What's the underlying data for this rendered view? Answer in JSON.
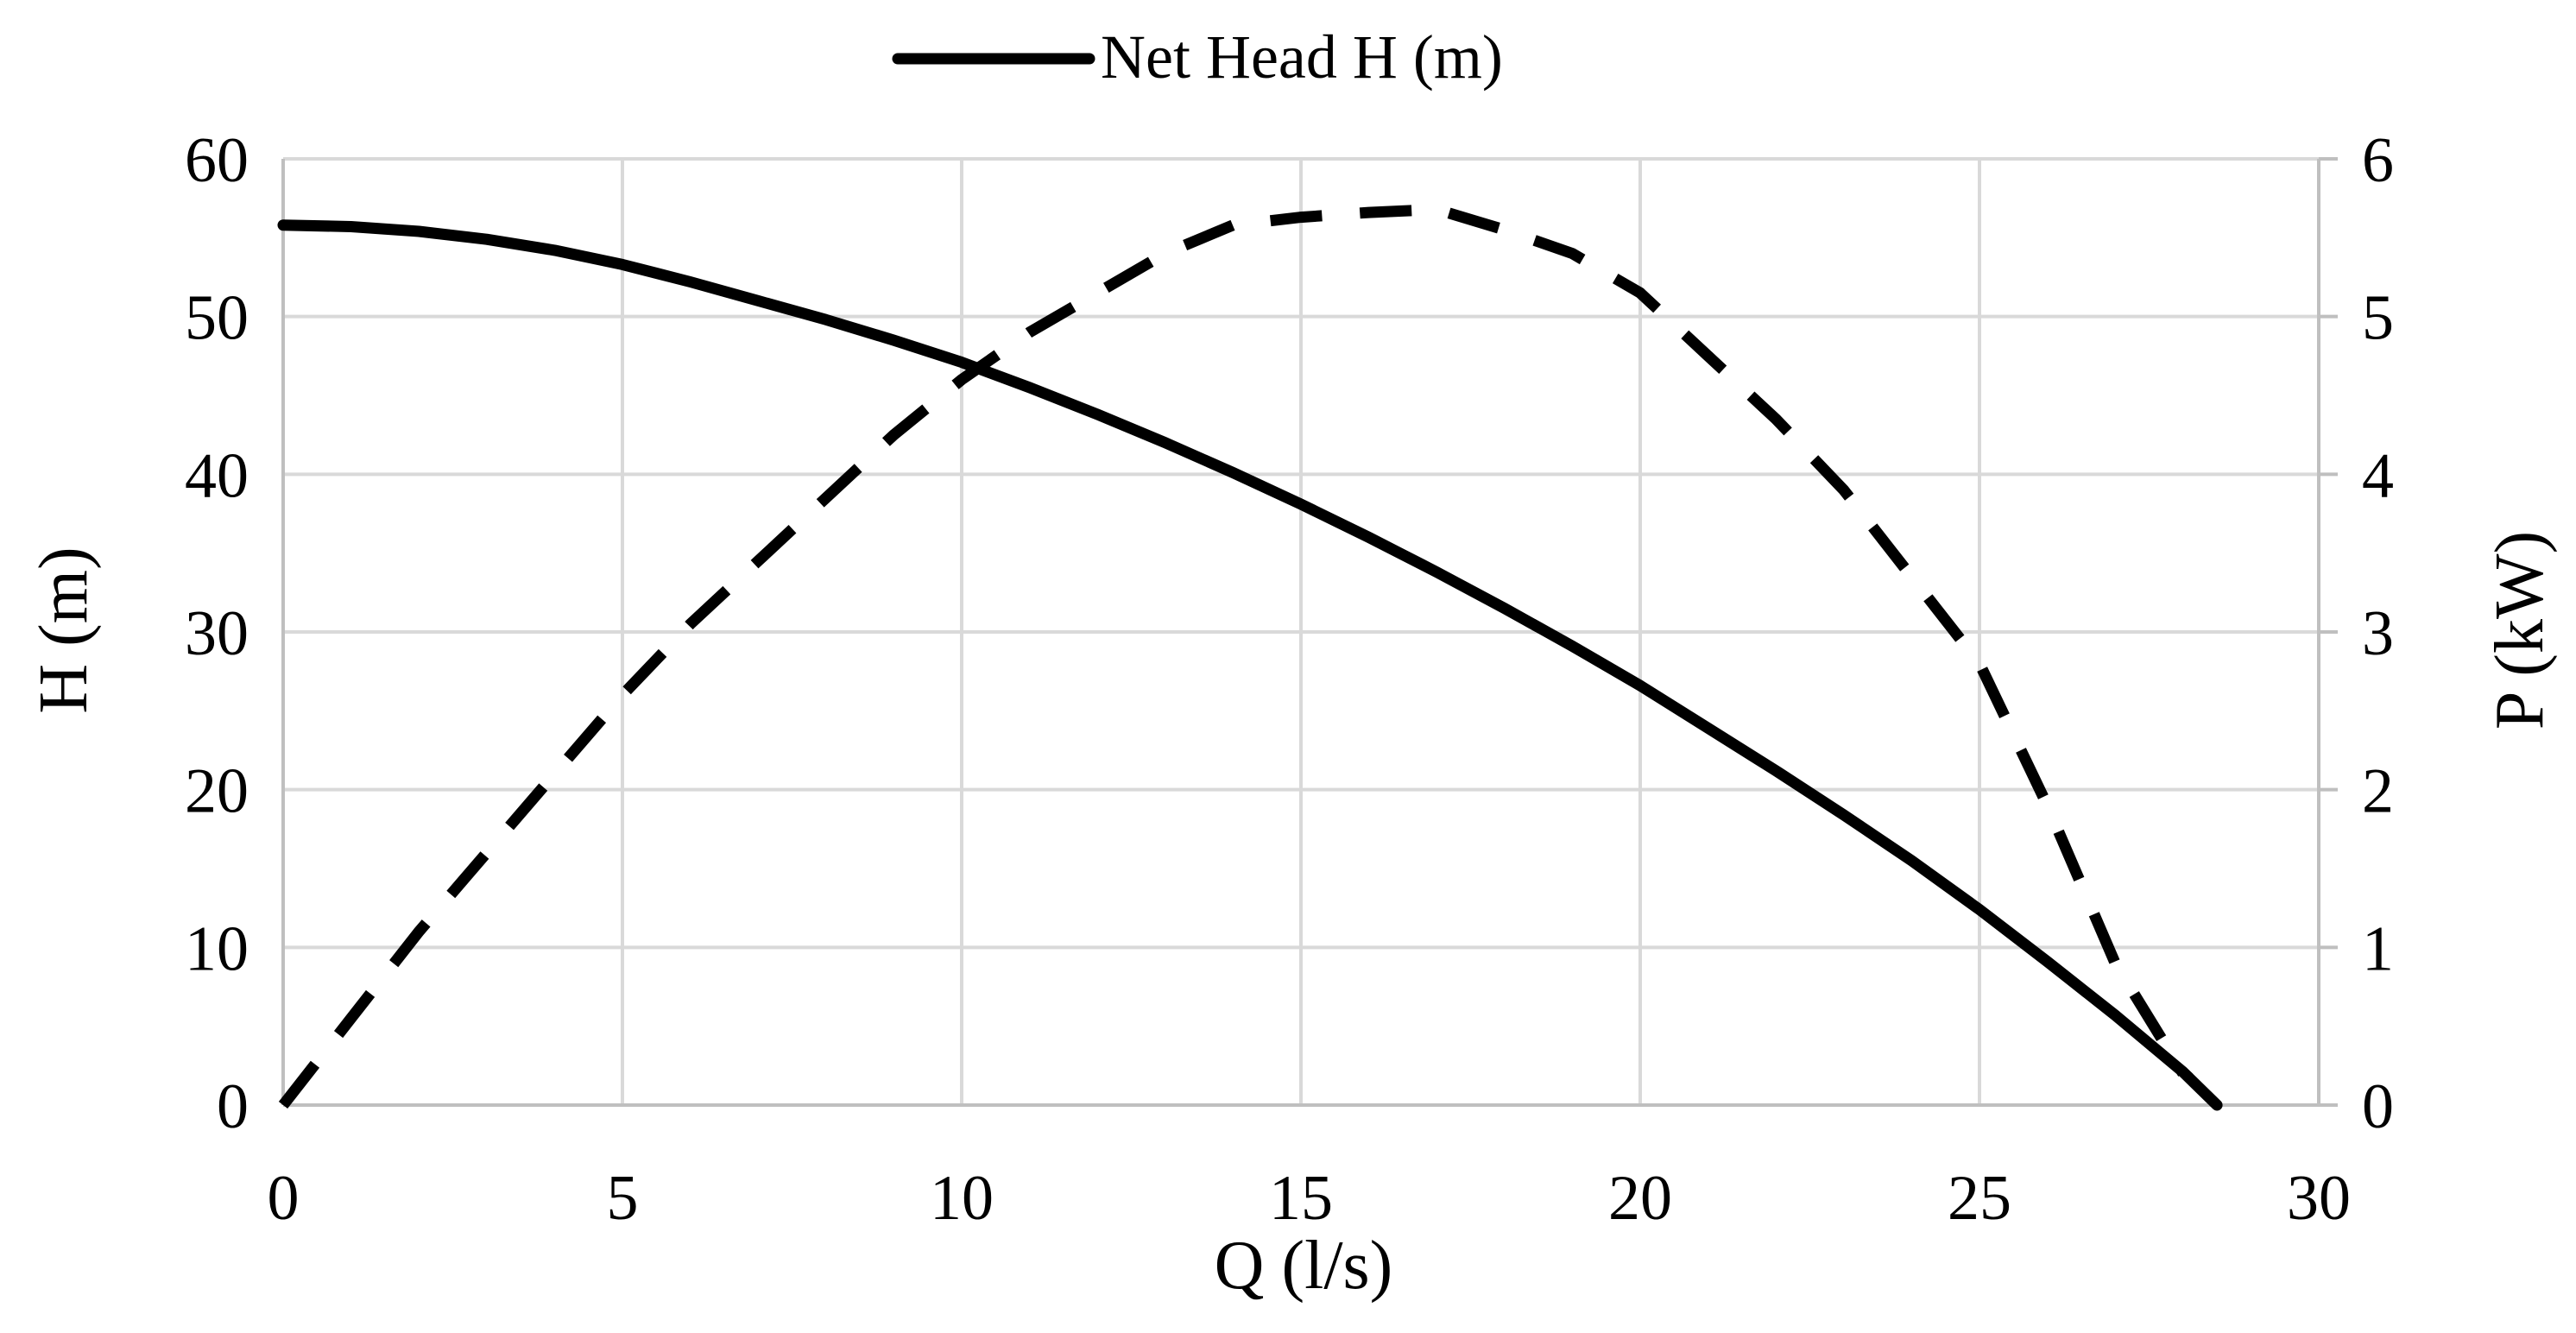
{
  "chart_data": {
    "type": "line",
    "title": "",
    "xlabel": "Q (l/s)",
    "ylabel": "H (m)",
    "y2label": "P (kW)",
    "xlim": [
      0,
      30
    ],
    "ylim": [
      0,
      60
    ],
    "y2lim": [
      0,
      6
    ],
    "xticks": [
      0,
      5,
      10,
      15,
      20,
      25,
      30
    ],
    "yticks": [
      0,
      10,
      20,
      30,
      40,
      50,
      60
    ],
    "y2ticks": [
      0,
      1,
      2,
      3,
      4,
      5,
      6
    ],
    "grid": true,
    "legend": {
      "position": "top-center",
      "entries": [
        "Net Head H (m)"
      ]
    },
    "series": [
      {
        "name": "Net Head H (m)",
        "axis": "left",
        "style": "solid",
        "color": "#000000",
        "x": [
          0,
          1,
          2,
          3,
          4,
          5,
          6,
          7,
          8,
          9,
          10,
          11,
          12,
          13,
          14,
          15,
          16,
          17,
          18,
          19,
          20,
          21,
          22,
          23,
          24,
          25,
          26,
          27,
          28,
          28.5
        ],
        "values": [
          55.8,
          55.7,
          55.4,
          54.9,
          54.2,
          53.3,
          52.2,
          51.0,
          49.8,
          48.5,
          47.1,
          45.5,
          43.8,
          42.0,
          40.1,
          38.1,
          36.0,
          33.8,
          31.5,
          29.1,
          26.6,
          23.9,
          21.2,
          18.4,
          15.5,
          12.4,
          9.1,
          5.7,
          2.1,
          0
        ]
      },
      {
        "axis": "right",
        "style": "dashed",
        "color": "#000000",
        "x": [
          0,
          1,
          2,
          3,
          4,
          5,
          6,
          7,
          8,
          9,
          10,
          11,
          12,
          13,
          14,
          15,
          16,
          17,
          18,
          19,
          20,
          21,
          22,
          23,
          24,
          25,
          26,
          27,
          28
        ],
        "values": [
          0,
          0.55,
          1.1,
          1.6,
          2.1,
          2.6,
          3.05,
          3.45,
          3.85,
          4.25,
          4.6,
          4.9,
          5.15,
          5.4,
          5.58,
          5.63,
          5.66,
          5.68,
          5.55,
          5.4,
          5.15,
          4.75,
          4.35,
          3.9,
          3.35,
          2.8,
          1.9,
          0.9,
          0.2
        ]
      }
    ]
  }
}
